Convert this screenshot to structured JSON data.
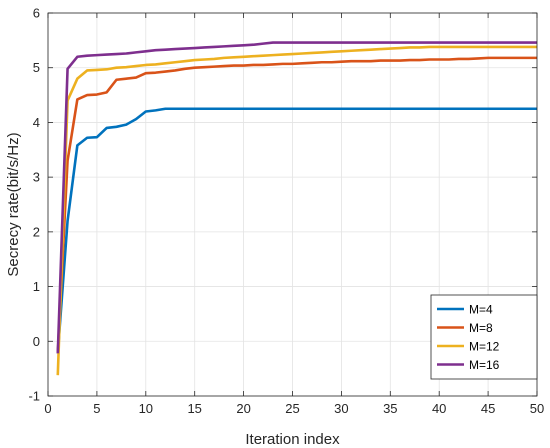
{
  "chart_data": {
    "type": "line",
    "title": "",
    "xlabel": "Iteration index",
    "ylabel": "Secrecy rate(bit/s/Hz)",
    "xlim": [
      0,
      50
    ],
    "ylim": [
      -1,
      6
    ],
    "xticks": [
      "0",
      "5",
      "10",
      "15",
      "20",
      "25",
      "30",
      "35",
      "40",
      "45",
      "50"
    ],
    "yticks": [
      "-1",
      "0",
      "1",
      "2",
      "3",
      "4",
      "5",
      "6"
    ],
    "grid": true,
    "legend_position": "bottom-right",
    "x": [
      1,
      2,
      3,
      4,
      5,
      6,
      7,
      8,
      9,
      10,
      11,
      12,
      13,
      14,
      15,
      16,
      17,
      18,
      19,
      20,
      21,
      22,
      23,
      24,
      25,
      26,
      27,
      28,
      29,
      30,
      31,
      32,
      33,
      34,
      35,
      36,
      37,
      38,
      39,
      40,
      41,
      42,
      43,
      44,
      45,
      46,
      47,
      48,
      49,
      50
    ],
    "series": [
      {
        "name": "M=4",
        "color": "#0072BD",
        "values": [
          -0.22,
          2.2,
          3.58,
          3.72,
          3.73,
          3.9,
          3.92,
          3.96,
          4.06,
          4.2,
          4.22,
          4.25,
          4.25,
          4.25,
          4.25,
          4.25,
          4.25,
          4.25,
          4.25,
          4.25,
          4.25,
          4.25,
          4.25,
          4.25,
          4.25,
          4.25,
          4.25,
          4.25,
          4.25,
          4.25,
          4.25,
          4.25,
          4.25,
          4.25,
          4.25,
          4.25,
          4.25,
          4.25,
          4.25,
          4.25,
          4.25,
          4.25,
          4.25,
          4.25,
          4.25,
          4.25,
          4.25,
          4.25,
          4.25,
          4.25
        ]
      },
      {
        "name": "M=8",
        "color": "#D95319",
        "values": [
          -0.22,
          3.3,
          4.42,
          4.5,
          4.51,
          4.55,
          4.78,
          4.8,
          4.82,
          4.9,
          4.91,
          4.93,
          4.95,
          4.98,
          5.0,
          5.01,
          5.02,
          5.03,
          5.04,
          5.04,
          5.05,
          5.05,
          5.06,
          5.07,
          5.07,
          5.08,
          5.09,
          5.1,
          5.1,
          5.11,
          5.12,
          5.12,
          5.12,
          5.13,
          5.13,
          5.13,
          5.14,
          5.14,
          5.15,
          5.15,
          5.15,
          5.16,
          5.16,
          5.17,
          5.18,
          5.18,
          5.18,
          5.18,
          5.18,
          5.18
        ]
      },
      {
        "name": "M=12",
        "color": "#EDB120",
        "values": [
          -0.62,
          4.4,
          4.8,
          4.95,
          4.96,
          4.97,
          5.0,
          5.01,
          5.03,
          5.05,
          5.06,
          5.08,
          5.1,
          5.12,
          5.14,
          5.15,
          5.16,
          5.18,
          5.19,
          5.2,
          5.21,
          5.22,
          5.23,
          5.24,
          5.25,
          5.26,
          5.27,
          5.28,
          5.29,
          5.3,
          5.31,
          5.32,
          5.33,
          5.34,
          5.35,
          5.36,
          5.37,
          5.37,
          5.38,
          5.38,
          5.38,
          5.38,
          5.38,
          5.38,
          5.38,
          5.38,
          5.38,
          5.38,
          5.38,
          5.38
        ]
      },
      {
        "name": "M=16",
        "color": "#7E2F8E",
        "values": [
          -0.22,
          4.98,
          5.2,
          5.22,
          5.23,
          5.24,
          5.25,
          5.26,
          5.28,
          5.3,
          5.32,
          5.33,
          5.34,
          5.35,
          5.36,
          5.37,
          5.38,
          5.39,
          5.4,
          5.41,
          5.42,
          5.44,
          5.46,
          5.46,
          5.46,
          5.46,
          5.46,
          5.46,
          5.46,
          5.46,
          5.46,
          5.46,
          5.46,
          5.46,
          5.46,
          5.46,
          5.46,
          5.46,
          5.46,
          5.46,
          5.46,
          5.46,
          5.46,
          5.46,
          5.46,
          5.46,
          5.46,
          5.46,
          5.46,
          5.46
        ]
      }
    ]
  }
}
